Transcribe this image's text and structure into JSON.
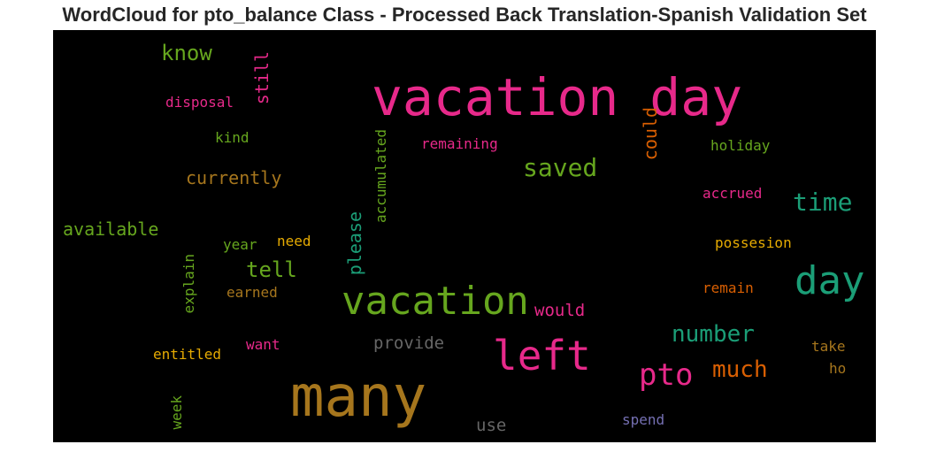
{
  "title": "WordCloud for pto_balance Class - Processed Back Translation-Spanish Validation Set",
  "chart_data": {
    "type": "wordcloud",
    "background": "#000000",
    "words": [
      {
        "text": "vacation day",
        "color": "#e7298a",
        "orientation": "horizontal"
      },
      {
        "text": "many",
        "color": "#a6761d",
        "orientation": "horizontal"
      },
      {
        "text": "vacation",
        "color": "#66a61e",
        "orientation": "horizontal"
      },
      {
        "text": "left",
        "color": "#e7298a",
        "orientation": "horizontal"
      },
      {
        "text": "day",
        "color": "#1b9e77",
        "orientation": "horizontal"
      },
      {
        "text": "pto",
        "color": "#e7298a",
        "orientation": "horizontal"
      },
      {
        "text": "saved",
        "color": "#66a61e",
        "orientation": "horizontal"
      },
      {
        "text": "number",
        "color": "#1b9e77",
        "orientation": "horizontal"
      },
      {
        "text": "time",
        "color": "#1b9e77",
        "orientation": "horizontal"
      },
      {
        "text": "much",
        "color": "#d95f02",
        "orientation": "horizontal"
      },
      {
        "text": "know",
        "color": "#66a61e",
        "orientation": "horizontal"
      },
      {
        "text": "tell",
        "color": "#66a61e",
        "orientation": "horizontal"
      },
      {
        "text": "currently",
        "color": "#a6761d",
        "orientation": "horizontal"
      },
      {
        "text": "available",
        "color": "#66a61e",
        "orientation": "horizontal"
      },
      {
        "text": "still",
        "color": "#e7298a",
        "orientation": "vertical"
      },
      {
        "text": "could",
        "color": "#d95f02",
        "orientation": "vertical"
      },
      {
        "text": "please",
        "color": "#1b9e77",
        "orientation": "vertical"
      },
      {
        "text": "would",
        "color": "#e7298a",
        "orientation": "horizontal"
      },
      {
        "text": "provide",
        "color": "#666666",
        "orientation": "horizontal"
      },
      {
        "text": "use",
        "color": "#666666",
        "orientation": "horizontal"
      },
      {
        "text": "remaining",
        "color": "#e7298a",
        "orientation": "horizontal"
      },
      {
        "text": "accumulated",
        "color": "#66a61e",
        "orientation": "vertical"
      },
      {
        "text": "disposal",
        "color": "#e7298a",
        "orientation": "horizontal"
      },
      {
        "text": "kind",
        "color": "#66a61e",
        "orientation": "horizontal"
      },
      {
        "text": "holiday",
        "color": "#66a61e",
        "orientation": "horizontal"
      },
      {
        "text": "accrued",
        "color": "#e7298a",
        "orientation": "horizontal"
      },
      {
        "text": "possesion",
        "color": "#e6ab02",
        "orientation": "horizontal"
      },
      {
        "text": "remain",
        "color": "#d95f02",
        "orientation": "horizontal"
      },
      {
        "text": "year",
        "color": "#66a61e",
        "orientation": "horizontal"
      },
      {
        "text": "need",
        "color": "#e6ab02",
        "orientation": "horizontal"
      },
      {
        "text": "earned",
        "color": "#a6761d",
        "orientation": "horizontal"
      },
      {
        "text": "explain",
        "color": "#66a61e",
        "orientation": "vertical"
      },
      {
        "text": "entitled",
        "color": "#e6ab02",
        "orientation": "horizontal"
      },
      {
        "text": "want",
        "color": "#e7298a",
        "orientation": "horizontal"
      },
      {
        "text": "week",
        "color": "#66a61e",
        "orientation": "vertical"
      },
      {
        "text": "spend",
        "color": "#7570b3",
        "orientation": "horizontal"
      },
      {
        "text": "take",
        "color": "#a6761d",
        "orientation": "horizontal"
      },
      {
        "text": "ho",
        "color": "#a6761d",
        "orientation": "horizontal"
      }
    ]
  }
}
